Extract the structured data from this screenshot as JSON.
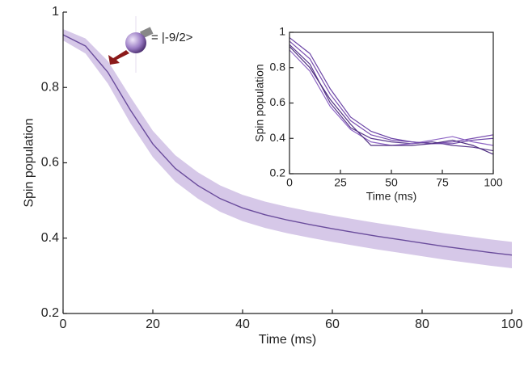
{
  "chart_data": [
    {
      "type": "line",
      "xlabel": "Time (ms)",
      "ylabel": "Spin population",
      "annotation": "= |-9/2>",
      "x": [
        0,
        5,
        10,
        15,
        20,
        25,
        30,
        35,
        40,
        45,
        50,
        55,
        60,
        65,
        70,
        75,
        80,
        85,
        90,
        95,
        100
      ],
      "series": [
        {
          "color": "#6a4c9c",
          "values": [
            0.94,
            0.91,
            0.84,
            0.74,
            0.65,
            0.585,
            0.54,
            0.505,
            0.48,
            0.462,
            0.448,
            0.436,
            0.425,
            0.415,
            0.405,
            0.396,
            0.387,
            0.378,
            0.37,
            0.362,
            0.355
          ],
          "band_color": "#d6c8e8",
          "upper": [
            0.955,
            0.93,
            0.87,
            0.775,
            0.685,
            0.62,
            0.575,
            0.54,
            0.515,
            0.497,
            0.483,
            0.471,
            0.46,
            0.45,
            0.44,
            0.431,
            0.422,
            0.413,
            0.405,
            0.397,
            0.39
          ],
          "lower": [
            0.925,
            0.89,
            0.81,
            0.705,
            0.615,
            0.55,
            0.505,
            0.47,
            0.445,
            0.427,
            0.413,
            0.401,
            0.39,
            0.38,
            0.37,
            0.361,
            0.352,
            0.343,
            0.335,
            0.327,
            0.32
          ]
        }
      ],
      "xlim": [
        0,
        100
      ],
      "xticks": [
        0,
        20,
        40,
        60,
        80,
        100
      ],
      "ylim": [
        0.2,
        1
      ],
      "yticks": [
        0.2,
        0.4,
        0.6,
        0.8,
        1
      ],
      "box": false
    },
    {
      "type": "line",
      "xlabel": "Time (ms)",
      "ylabel": "Spin population",
      "x": [
        0,
        10,
        20,
        30,
        40,
        50,
        60,
        70,
        80,
        90,
        100
      ],
      "series": [
        {
          "color": "#7a4fb0",
          "values": [
            0.95,
            0.85,
            0.65,
            0.5,
            0.42,
            0.39,
            0.38,
            0.37,
            0.38,
            0.4,
            0.42
          ]
        },
        {
          "color": "#5b3a8e",
          "values": [
            0.93,
            0.82,
            0.6,
            0.46,
            0.4,
            0.38,
            0.37,
            0.38,
            0.36,
            0.35,
            0.33
          ]
        },
        {
          "color": "#8d64c4",
          "values": [
            0.9,
            0.78,
            0.58,
            0.45,
            0.38,
            0.36,
            0.37,
            0.39,
            0.41,
            0.38,
            0.36
          ]
        },
        {
          "color": "#6b44a6",
          "values": [
            0.97,
            0.88,
            0.68,
            0.52,
            0.44,
            0.4,
            0.38,
            0.37,
            0.37,
            0.39,
            0.4
          ]
        },
        {
          "color": "#4f2f80",
          "values": [
            0.92,
            0.8,
            0.62,
            0.48,
            0.36,
            0.36,
            0.36,
            0.37,
            0.39,
            0.36,
            0.31
          ]
        }
      ],
      "xlim": [
        0,
        100
      ],
      "xticks": [
        0,
        25,
        50,
        75,
        100
      ],
      "ylim": [
        0.2,
        1
      ],
      "yticks": [
        0.2,
        0.4,
        0.6,
        0.8,
        1
      ],
      "box": true
    }
  ]
}
